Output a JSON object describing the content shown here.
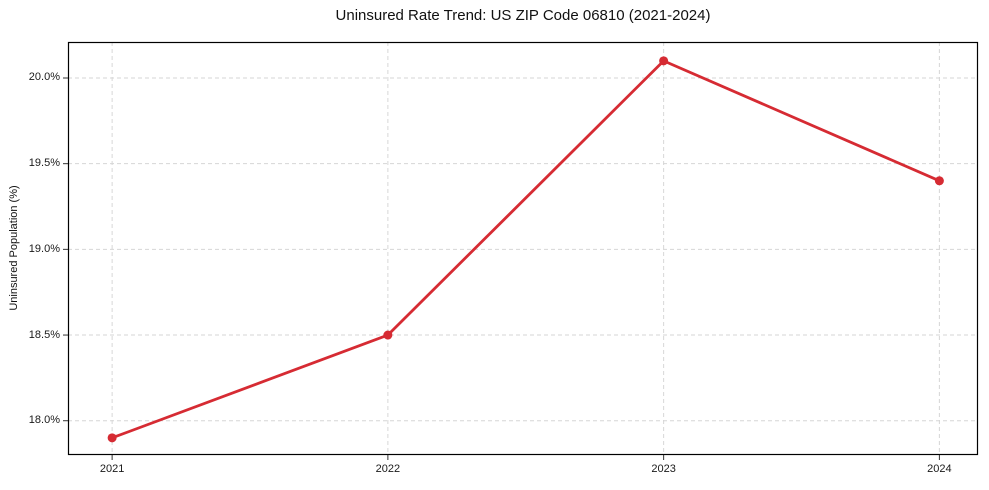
{
  "chart_data": {
    "type": "line",
    "title": "Uninsured Rate Trend: US ZIP Code 06810 (2021-2024)",
    "xlabel": "",
    "ylabel": "Uninsured Population (%)",
    "x": [
      2021,
      2022,
      2023,
      2024
    ],
    "xtick_labels": [
      "2021",
      "2022",
      "2023",
      "2024"
    ],
    "values": [
      17.9,
      18.5,
      20.1,
      19.4
    ],
    "yticks": [
      18.0,
      18.5,
      19.0,
      19.5,
      20.0
    ],
    "ytick_labels": [
      "18.0%",
      "18.5%",
      "19.0%",
      "19.5%",
      "20.0%"
    ],
    "xlim": [
      2020.84,
      2024.14
    ],
    "ylim": [
      17.8,
      20.21
    ],
    "grid": true,
    "legend": false,
    "style": {
      "line_color": "#d62b33",
      "marker": "circle",
      "marker_color": "#d62b33",
      "grid_color": "#d6d6d6",
      "spine_color": "#000000",
      "tick_color": "#333333",
      "background": "#ffffff"
    }
  }
}
